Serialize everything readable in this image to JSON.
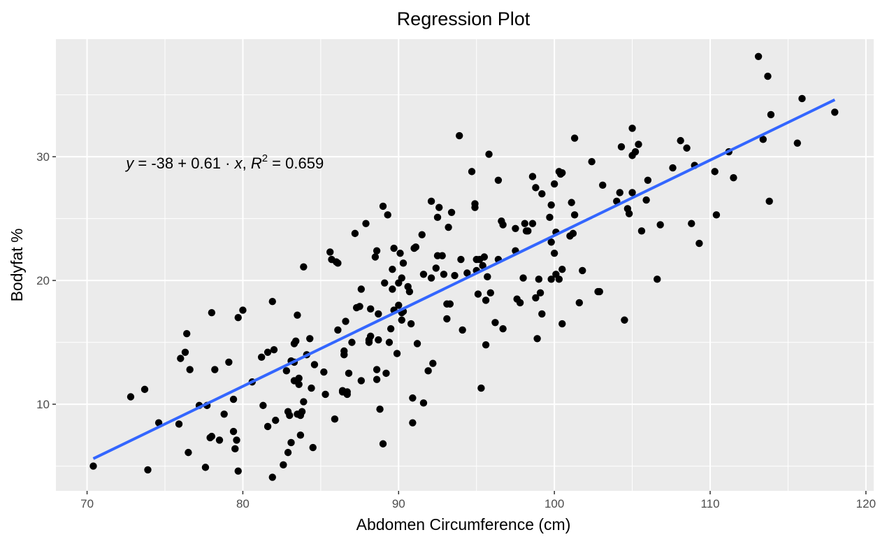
{
  "chart_data": {
    "type": "scatter",
    "title": "Regression Plot",
    "xlabel": "Abdomen Circumference (cm)",
    "ylabel": "Bodyfat %",
    "xlim": [
      68,
      120.5
    ],
    "ylim": [
      3,
      39.5
    ],
    "xticks": [
      70,
      80,
      90,
      100,
      110,
      120
    ],
    "yticks": [
      10,
      20,
      30
    ],
    "grid": true,
    "colors": {
      "panel": "#ebebeb",
      "grid": "#ffffff",
      "points": "#000000",
      "line": "#3366ff"
    },
    "regression": {
      "intercept": -38,
      "slope": 0.61,
      "r2": 0.659,
      "x_range": [
        70.4,
        118
      ],
      "y_at_min": 5.6,
      "y_at_max": 34.6,
      "eq_y": "y",
      "eq_equals1": " = -38 + 0.61 · ",
      "eq_x": "x",
      "eq_sep": ",  ",
      "eq_r": "R",
      "eq_r_sup": "2",
      "eq_equals2": " = 0.659",
      "label_position": [
        72.5,
        29.5
      ]
    },
    "points": [
      [
        70.4,
        5.0
      ],
      [
        72.8,
        10.6
      ],
      [
        73.7,
        11.2
      ],
      [
        73.9,
        4.7
      ],
      [
        74.6,
        8.5
      ],
      [
        76.0,
        13.7
      ],
      [
        75.9,
        8.4
      ],
      [
        76.3,
        14.2
      ],
      [
        76.4,
        15.7
      ],
      [
        76.6,
        12.8
      ],
      [
        76.5,
        6.1
      ],
      [
        77.2,
        9.9
      ],
      [
        77.6,
        4.9
      ],
      [
        77.7,
        9.9
      ],
      [
        78.0,
        17.4
      ],
      [
        78.0,
        7.4
      ],
      [
        77.9,
        7.3
      ],
      [
        78.2,
        12.8
      ],
      [
        78.5,
        7.1
      ],
      [
        78.8,
        9.2
      ],
      [
        79.1,
        13.4
      ],
      [
        79.4,
        10.4
      ],
      [
        79.4,
        7.8
      ],
      [
        79.5,
        6.4
      ],
      [
        79.6,
        7.1
      ],
      [
        79.7,
        17.0
      ],
      [
        79.7,
        4.6
      ],
      [
        80.0,
        17.6
      ],
      [
        80.6,
        11.8
      ],
      [
        81.2,
        13.8
      ],
      [
        81.3,
        9.9
      ],
      [
        81.6,
        14.2
      ],
      [
        81.6,
        8.2
      ],
      [
        81.9,
        18.3
      ],
      [
        82.0,
        14.4
      ],
      [
        82.1,
        8.7
      ],
      [
        81.9,
        4.1
      ],
      [
        82.6,
        5.1
      ],
      [
        82.8,
        12.7
      ],
      [
        82.9,
        9.4
      ],
      [
        82.9,
        6.1
      ],
      [
        83.0,
        9.1
      ],
      [
        83.1,
        6.9
      ],
      [
        83.1,
        13.5
      ],
      [
        83.3,
        14.9
      ],
      [
        83.3,
        13.4
      ],
      [
        83.3,
        11.9
      ],
      [
        83.4,
        15.1
      ],
      [
        83.5,
        9.2
      ],
      [
        83.5,
        17.2
      ],
      [
        83.6,
        12.1
      ],
      [
        83.6,
        11.6
      ],
      [
        83.7,
        7.5
      ],
      [
        83.8,
        9.4
      ],
      [
        83.7,
        9.1
      ],
      [
        83.9,
        21.1
      ],
      [
        83.9,
        10.2
      ],
      [
        84.1,
        14.0
      ],
      [
        84.3,
        15.3
      ],
      [
        84.4,
        11.3
      ],
      [
        84.5,
        6.5
      ],
      [
        84.6,
        13.2
      ],
      [
        85.2,
        12.6
      ],
      [
        85.3,
        10.8
      ],
      [
        85.6,
        22.3
      ],
      [
        85.7,
        21.7
      ],
      [
        86.0,
        21.5
      ],
      [
        86.1,
        21.4
      ],
      [
        85.9,
        8.8
      ],
      [
        86.1,
        16.0
      ],
      [
        86.4,
        11.0
      ],
      [
        86.4,
        11.1
      ],
      [
        86.5,
        14.3
      ],
      [
        86.5,
        14.0
      ],
      [
        86.6,
        16.7
      ],
      [
        86.7,
        11.0
      ],
      [
        86.7,
        10.8
      ],
      [
        86.8,
        12.5
      ],
      [
        87.2,
        23.8
      ],
      [
        87.3,
        17.8
      ],
      [
        87.5,
        17.9
      ],
      [
        87.6,
        19.3
      ],
      [
        87.6,
        11.9
      ],
      [
        87.0,
        15.0
      ],
      [
        87.9,
        24.6
      ],
      [
        88.1,
        15.2
      ],
      [
        88.1,
        15.0
      ],
      [
        88.2,
        17.7
      ],
      [
        88.2,
        15.5
      ],
      [
        88.5,
        21.9
      ],
      [
        88.6,
        22.4
      ],
      [
        88.6,
        12.8
      ],
      [
        88.6,
        12.0
      ],
      [
        88.7,
        17.3
      ],
      [
        88.7,
        15.2
      ],
      [
        88.8,
        9.6
      ],
      [
        89.0,
        26.0
      ],
      [
        89.1,
        19.8
      ],
      [
        89.2,
        12.5
      ],
      [
        89.0,
        6.8
      ],
      [
        89.3,
        25.3
      ],
      [
        89.4,
        15.0
      ],
      [
        89.5,
        16.1
      ],
      [
        89.6,
        20.9
      ],
      [
        89.6,
        19.3
      ],
      [
        89.7,
        17.6
      ],
      [
        89.7,
        22.6
      ],
      [
        89.9,
        14.1
      ],
      [
        90.0,
        19.8
      ],
      [
        90.0,
        18.0
      ],
      [
        90.1,
        22.2
      ],
      [
        90.2,
        20.2
      ],
      [
        90.2,
        17.4
      ],
      [
        90.2,
        16.8
      ],
      [
        90.3,
        21.4
      ],
      [
        90.3,
        17.5
      ],
      [
        90.6,
        19.5
      ],
      [
        90.7,
        19.1
      ],
      [
        90.8,
        16.5
      ],
      [
        90.9,
        10.5
      ],
      [
        90.9,
        8.5
      ],
      [
        91.0,
        22.6
      ],
      [
        91.1,
        22.7
      ],
      [
        91.2,
        14.9
      ],
      [
        91.5,
        23.7
      ],
      [
        91.6,
        20.5
      ],
      [
        91.6,
        10.1
      ],
      [
        91.9,
        12.7
      ],
      [
        92.1,
        20.2
      ],
      [
        92.1,
        26.4
      ],
      [
        92.2,
        13.3
      ],
      [
        92.4,
        21.0
      ],
      [
        92.5,
        22.0
      ],
      [
        92.5,
        25.1
      ],
      [
        92.6,
        25.9
      ],
      [
        92.8,
        22.0
      ],
      [
        92.9,
        20.5
      ],
      [
        93.1,
        16.9
      ],
      [
        93.1,
        18.1
      ],
      [
        93.2,
        24.3
      ],
      [
        93.3,
        18.1
      ],
      [
        93.4,
        25.5
      ],
      [
        93.6,
        20.4
      ],
      [
        93.9,
        31.7
      ],
      [
        94.0,
        21.7
      ],
      [
        94.1,
        16.0
      ],
      [
        94.4,
        20.6
      ],
      [
        94.7,
        28.8
      ],
      [
        94.9,
        26.2
      ],
      [
        94.9,
        25.9
      ],
      [
        95.0,
        21.7
      ],
      [
        95.0,
        20.8
      ],
      [
        95.1,
        18.9
      ],
      [
        95.2,
        21.7
      ],
      [
        95.3,
        11.3
      ],
      [
        95.4,
        21.2
      ],
      [
        95.5,
        21.9
      ],
      [
        95.6,
        18.4
      ],
      [
        95.6,
        14.8
      ],
      [
        95.7,
        20.3
      ],
      [
        95.8,
        30.2
      ],
      [
        95.9,
        19.0
      ],
      [
        96.2,
        16.6
      ],
      [
        96.4,
        28.1
      ],
      [
        96.4,
        21.7
      ],
      [
        96.6,
        24.8
      ],
      [
        96.7,
        24.5
      ],
      [
        96.7,
        16.1
      ],
      [
        97.5,
        22.4
      ],
      [
        97.5,
        24.2
      ],
      [
        97.6,
        18.5
      ],
      [
        97.8,
        18.2
      ],
      [
        98.0,
        20.2
      ],
      [
        98.1,
        24.6
      ],
      [
        98.2,
        24.0
      ],
      [
        98.3,
        24.0
      ],
      [
        98.6,
        28.4
      ],
      [
        98.6,
        24.6
      ],
      [
        98.8,
        27.5
      ],
      [
        98.8,
        18.6
      ],
      [
        98.9,
        15.3
      ],
      [
        99.0,
        20.1
      ],
      [
        99.1,
        19.0
      ],
      [
        99.2,
        27.0
      ],
      [
        99.2,
        17.3
      ],
      [
        99.7,
        25.1
      ],
      [
        99.8,
        26.1
      ],
      [
        99.8,
        20.1
      ],
      [
        99.8,
        23.1
      ],
      [
        100.0,
        27.8
      ],
      [
        100.0,
        22.2
      ],
      [
        100.1,
        20.5
      ],
      [
        100.1,
        23.9
      ],
      [
        100.3,
        28.8
      ],
      [
        100.3,
        20.1
      ],
      [
        100.4,
        28.6
      ],
      [
        100.5,
        28.7
      ],
      [
        100.5,
        20.9
      ],
      [
        100.5,
        16.5
      ],
      [
        101.0,
        23.6
      ],
      [
        101.1,
        26.3
      ],
      [
        101.2,
        23.8
      ],
      [
        101.3,
        31.5
      ],
      [
        101.3,
        25.3
      ],
      [
        101.6,
        18.2
      ],
      [
        101.8,
        20.8
      ],
      [
        102.4,
        29.6
      ],
      [
        102.8,
        19.1
      ],
      [
        102.9,
        19.1
      ],
      [
        103.1,
        27.7
      ],
      [
        104.0,
        26.4
      ],
      [
        104.2,
        27.1
      ],
      [
        104.3,
        30.8
      ],
      [
        104.5,
        16.8
      ],
      [
        104.7,
        25.8
      ],
      [
        104.8,
        25.4
      ],
      [
        105.0,
        30.1
      ],
      [
        105.0,
        27.1
      ],
      [
        105.0,
        32.3
      ],
      [
        105.2,
        30.4
      ],
      [
        105.4,
        31.0
      ],
      [
        105.6,
        24.0
      ],
      [
        105.9,
        26.5
      ],
      [
        106.0,
        28.1
      ],
      [
        106.6,
        20.1
      ],
      [
        106.8,
        24.5
      ],
      [
        107.6,
        29.1
      ],
      [
        108.1,
        31.3
      ],
      [
        108.5,
        30.7
      ],
      [
        108.8,
        24.6
      ],
      [
        109.0,
        29.3
      ],
      [
        109.3,
        23.0
      ],
      [
        110.3,
        28.8
      ],
      [
        110.4,
        25.3
      ],
      [
        111.2,
        30.4
      ],
      [
        111.5,
        28.3
      ],
      [
        113.1,
        38.1
      ],
      [
        113.4,
        31.4
      ],
      [
        113.7,
        36.5
      ],
      [
        113.8,
        26.4
      ],
      [
        113.9,
        33.4
      ],
      [
        115.6,
        31.1
      ],
      [
        115.9,
        34.7
      ],
      [
        118.0,
        33.6
      ]
    ]
  }
}
